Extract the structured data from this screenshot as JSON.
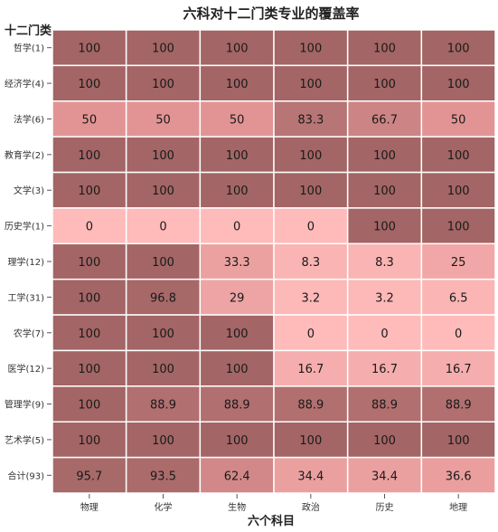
{
  "chart_data": {
    "type": "heatmap",
    "title": "六科对十二门类专业的覆盖率",
    "xlabel": "六个科目",
    "ylabel": "十二门类",
    "x_categories": [
      "物理",
      "化学",
      "生物",
      "政治",
      "历史",
      "地理"
    ],
    "y_categories": [
      "哲学(1)",
      "经济学(4)",
      "法学(6)",
      "教育学(2)",
      "文学(3)",
      "历史学(1)",
      "理学(12)",
      "工学(31)",
      "农学(7)",
      "医学(12)",
      "管理学(9)",
      "艺术学(5)",
      "合计(93)"
    ],
    "values": [
      [
        100,
        100,
        100,
        100,
        100,
        100
      ],
      [
        100,
        100,
        100,
        100,
        100,
        100
      ],
      [
        50,
        50,
        50,
        83.3,
        66.7,
        50
      ],
      [
        100,
        100,
        100,
        100,
        100,
        100
      ],
      [
        100,
        100,
        100,
        100,
        100,
        100
      ],
      [
        0,
        0,
        0,
        0,
        100,
        100
      ],
      [
        100,
        100,
        33.3,
        8.3,
        8.3,
        25
      ],
      [
        100,
        96.8,
        29,
        3.2,
        3.2,
        6.5
      ],
      [
        100,
        100,
        100,
        0,
        0,
        0
      ],
      [
        100,
        100,
        100,
        16.7,
        16.7,
        16.7
      ],
      [
        100,
        88.9,
        88.9,
        88.9,
        88.9,
        88.9
      ],
      [
        100,
        100,
        100,
        100,
        100,
        100
      ],
      [
        95.7,
        93.5,
        62.4,
        34.4,
        34.4,
        36.6
      ]
    ],
    "value_range": [
      0,
      100
    ],
    "colors": {
      "low": "#ffbaba",
      "mid": "#e29494",
      "high": "#a36565"
    },
    "grid": true,
    "legend": "none"
  }
}
